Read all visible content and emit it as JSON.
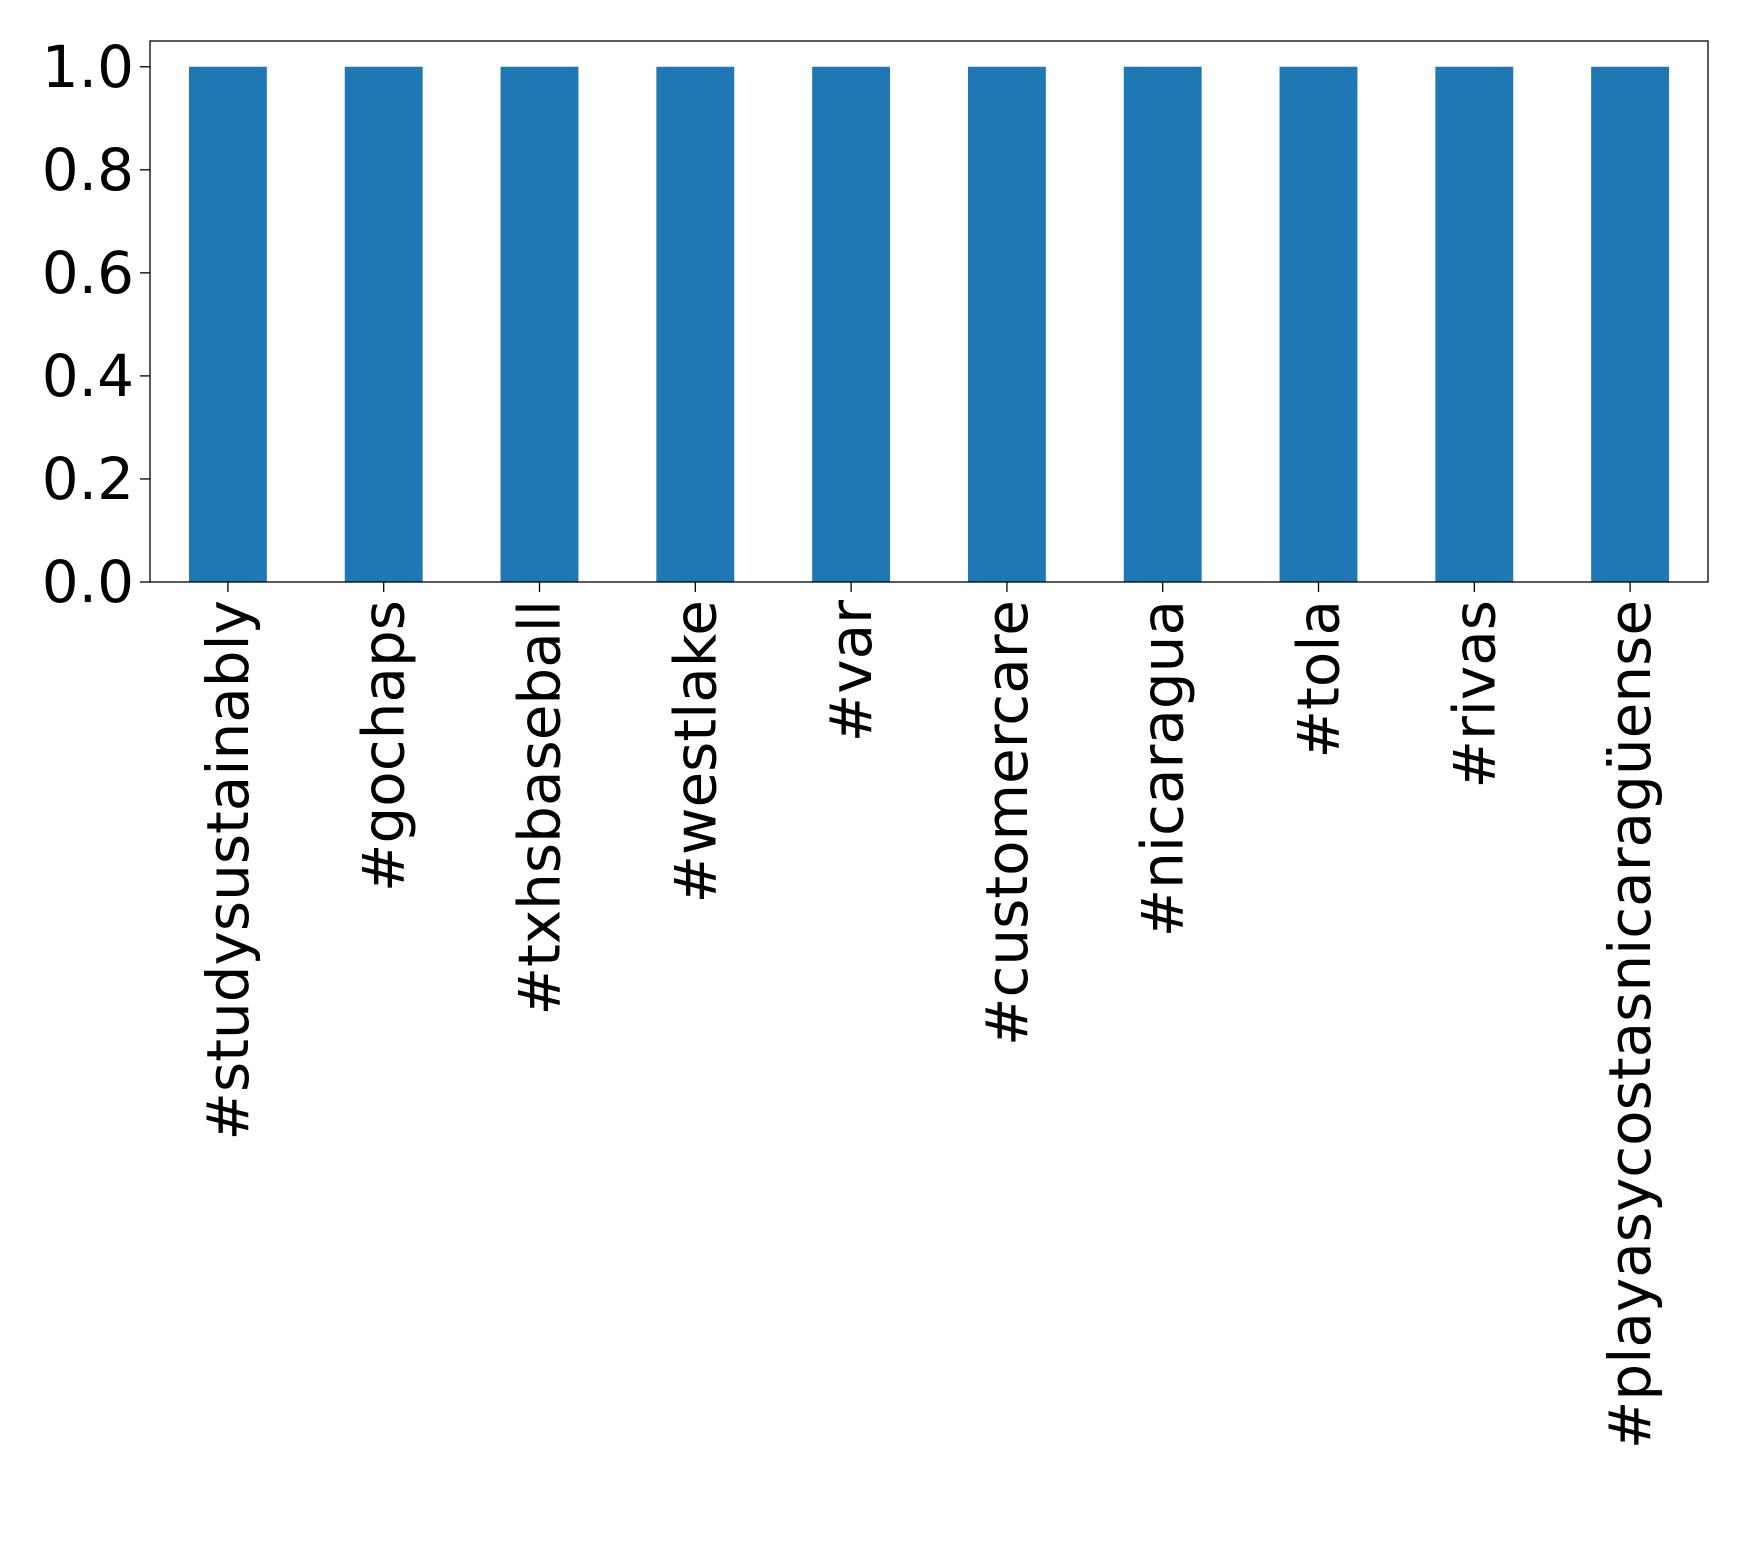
{
  "chart_data": {
    "type": "bar",
    "title": "",
    "xlabel": "",
    "ylabel": "",
    "categories": [
      "#studysustainably",
      "#gochaps",
      "#txhsbaseball",
      "#westlake",
      "#var",
      "#customercare",
      "#nicaragua",
      "#tola",
      "#rivas",
      "#playasycostasnicaragüense"
    ],
    "values": [
      1.0,
      1.0,
      1.0,
      1.0,
      1.0,
      1.0,
      1.0,
      1.0,
      1.0,
      1.0
    ],
    "ylim": [
      0,
      1.05
    ],
    "yticks": [
      "0.0",
      "0.2",
      "0.4",
      "0.6",
      "0.8",
      "1.0"
    ],
    "grid": false,
    "legend": "none",
    "bar_color": "#1f77b4"
  }
}
